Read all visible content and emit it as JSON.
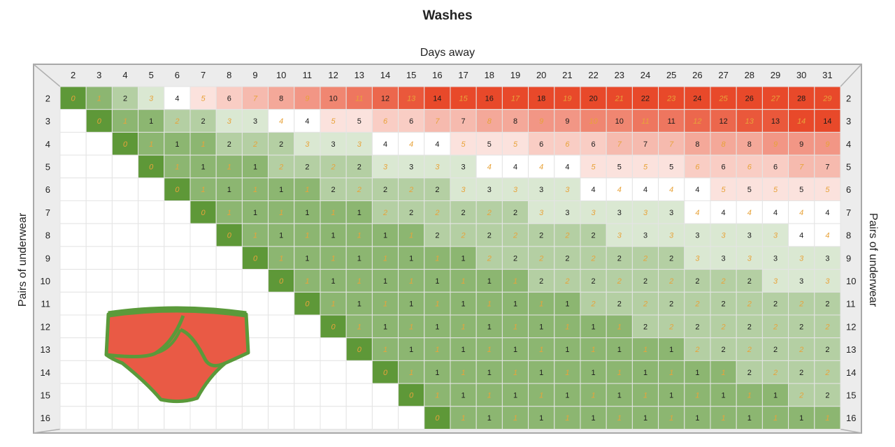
{
  "chart_data": {
    "type": "heatmap",
    "title": "Washes",
    "xlabel": "Days away",
    "ylabel": "Pairs of underwear",
    "x": [
      2,
      3,
      4,
      5,
      6,
      7,
      8,
      9,
      10,
      11,
      12,
      13,
      14,
      15,
      16,
      17,
      18,
      19,
      20,
      21,
      22,
      23,
      24,
      25,
      26,
      27,
      28,
      29,
      30,
      31
    ],
    "y": [
      2,
      3,
      4,
      5,
      6,
      7,
      8,
      9,
      10,
      11,
      12,
      13,
      14,
      15,
      16
    ],
    "values": [
      [
        0,
        1,
        2,
        3,
        4,
        5,
        6,
        7,
        8,
        9,
        10,
        11,
        12,
        13,
        14,
        15,
        16,
        17,
        18,
        19,
        20,
        21,
        22,
        23,
        24,
        25,
        26,
        27,
        28,
        29
      ],
      [
        null,
        0,
        1,
        1,
        2,
        2,
        3,
        3,
        4,
        4,
        5,
        5,
        6,
        6,
        7,
        7,
        8,
        8,
        9,
        9,
        10,
        10,
        11,
        11,
        12,
        12,
        13,
        13,
        14,
        14
      ],
      [
        null,
        null,
        0,
        1,
        1,
        1,
        2,
        2,
        2,
        3,
        3,
        3,
        4,
        4,
        4,
        5,
        5,
        5,
        6,
        6,
        6,
        7,
        7,
        7,
        8,
        8,
        8,
        9,
        9,
        9
      ],
      [
        null,
        null,
        null,
        0,
        1,
        1,
        1,
        1,
        2,
        2,
        2,
        2,
        3,
        3,
        3,
        3,
        4,
        4,
        4,
        4,
        5,
        5,
        5,
        5,
        6,
        6,
        6,
        6,
        7,
        7
      ],
      [
        null,
        null,
        null,
        null,
        0,
        1,
        1,
        1,
        1,
        1,
        2,
        2,
        2,
        2,
        2,
        3,
        3,
        3,
        3,
        3,
        4,
        4,
        4,
        4,
        4,
        5,
        5,
        5,
        5,
        5
      ],
      [
        null,
        null,
        null,
        null,
        null,
        0,
        1,
        1,
        1,
        1,
        1,
        1,
        2,
        2,
        2,
        2,
        2,
        2,
        3,
        3,
        3,
        3,
        3,
        3,
        4,
        4,
        4,
        4,
        4,
        4
      ],
      [
        null,
        null,
        null,
        null,
        null,
        null,
        0,
        1,
        1,
        1,
        1,
        1,
        1,
        1,
        2,
        2,
        2,
        2,
        2,
        2,
        2,
        3,
        3,
        3,
        3,
        3,
        3,
        3,
        4,
        4
      ],
      [
        null,
        null,
        null,
        null,
        null,
        null,
        null,
        0,
        1,
        1,
        1,
        1,
        1,
        1,
        1,
        1,
        2,
        2,
        2,
        2,
        2,
        2,
        2,
        2,
        3,
        3,
        3,
        3,
        3,
        3
      ],
      [
        null,
        null,
        null,
        null,
        null,
        null,
        null,
        null,
        0,
        1,
        1,
        1,
        1,
        1,
        1,
        1,
        1,
        1,
        2,
        2,
        2,
        2,
        2,
        2,
        2,
        2,
        2,
        3,
        3,
        3
      ],
      [
        null,
        null,
        null,
        null,
        null,
        null,
        null,
        null,
        null,
        0,
        1,
        1,
        1,
        1,
        1,
        1,
        1,
        1,
        1,
        1,
        2,
        2,
        2,
        2,
        2,
        2,
        2,
        2,
        2,
        2
      ],
      [
        null,
        null,
        null,
        null,
        null,
        null,
        null,
        null,
        null,
        null,
        0,
        1,
        1,
        1,
        1,
        1,
        1,
        1,
        1,
        1,
        1,
        1,
        2,
        2,
        2,
        2,
        2,
        2,
        2,
        2
      ],
      [
        null,
        null,
        null,
        null,
        null,
        null,
        null,
        null,
        null,
        null,
        null,
        0,
        1,
        1,
        1,
        1,
        1,
        1,
        1,
        1,
        1,
        1,
        1,
        1,
        2,
        2,
        2,
        2,
        2,
        2
      ],
      [
        null,
        null,
        null,
        null,
        null,
        null,
        null,
        null,
        null,
        null,
        null,
        null,
        0,
        1,
        1,
        1,
        1,
        1,
        1,
        1,
        1,
        1,
        1,
        1,
        1,
        1,
        2,
        2,
        2,
        2
      ],
      [
        null,
        null,
        null,
        null,
        null,
        null,
        null,
        null,
        null,
        null,
        null,
        null,
        null,
        0,
        1,
        1,
        1,
        1,
        1,
        1,
        1,
        1,
        1,
        1,
        1,
        1,
        1,
        1,
        2,
        2
      ],
      [
        null,
        null,
        null,
        null,
        null,
        null,
        null,
        null,
        null,
        null,
        null,
        null,
        null,
        null,
        0,
        1,
        1,
        1,
        1,
        1,
        1,
        1,
        1,
        1,
        1,
        1,
        1,
        1,
        1,
        1
      ]
    ],
    "color_scale": {
      "low": "#5e9838",
      "mid": "#ffffff",
      "high": "#e8492a"
    },
    "grid": true,
    "illustration": "underwear-icon"
  }
}
